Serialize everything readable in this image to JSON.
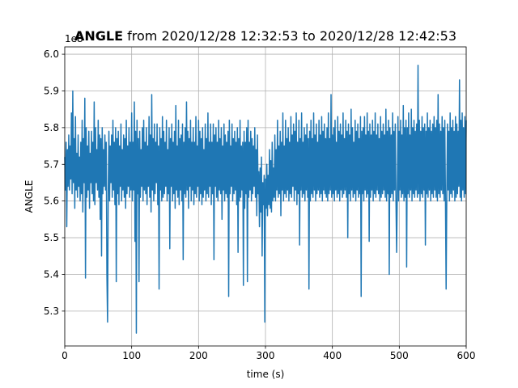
{
  "chart_data": {
    "type": "line",
    "title_bold": "ANGLE",
    "title_rest": " from 2020/12/28 12:32:53 to 2020/12/28 12:42:53",
    "xlabel": "time (s)",
    "ylabel": "ANGLE",
    "offset_label": "1e8",
    "xlim": [
      0,
      600
    ],
    "ylim": [
      5.205,
      6.02
    ],
    "xticks": [
      0,
      100,
      200,
      300,
      400,
      500,
      600
    ],
    "xtick_labels": [
      "0",
      "100",
      "200",
      "300",
      "400",
      "500",
      "600"
    ],
    "yticks": [
      5.3,
      5.4,
      5.5,
      5.6,
      5.7,
      5.8,
      5.9,
      6.0
    ],
    "ytick_labels": [
      "5.3",
      "5.4",
      "5.5",
      "5.6",
      "5.7",
      "5.8",
      "5.9",
      "6.0"
    ],
    "grid": true,
    "series": [
      {
        "color": "#1f77b4",
        "x": [
          0,
          1,
          2,
          3,
          4,
          5,
          6,
          7,
          8,
          9,
          10,
          11,
          12,
          13,
          14,
          15,
          16,
          17,
          18,
          19,
          20,
          21,
          22,
          23,
          24,
          25,
          26,
          27,
          28,
          29,
          30,
          31,
          32,
          33,
          34,
          35,
          36,
          37,
          38,
          39,
          40,
          41,
          42,
          43,
          44,
          45,
          46,
          47,
          48,
          49,
          50,
          51,
          52,
          53,
          54,
          55,
          56,
          57,
          58,
          59,
          60,
          61,
          62,
          63,
          64,
          65,
          66,
          67,
          68,
          69,
          70,
          71,
          72,
          73,
          74,
          75,
          76,
          77,
          78,
          79,
          80,
          81,
          82,
          83,
          84,
          85,
          86,
          87,
          88,
          89,
          90,
          91,
          92,
          93,
          94,
          95,
          96,
          97,
          98,
          99,
          100,
          101,
          102,
          103,
          104,
          105,
          106,
          107,
          108,
          109,
          110,
          111,
          112,
          113,
          114,
          115,
          116,
          117,
          118,
          119,
          120,
          121,
          122,
          123,
          124,
          125,
          126,
          127,
          128,
          129,
          130,
          131,
          132,
          133,
          134,
          135,
          136,
          137,
          138,
          139,
          140,
          141,
          142,
          143,
          144,
          145,
          146,
          147,
          148,
          149,
          150,
          151,
          152,
          153,
          154,
          155,
          156,
          157,
          158,
          159,
          160,
          161,
          162,
          163,
          164,
          165,
          166,
          167,
          168,
          169,
          170,
          171,
          172,
          173,
          174,
          175,
          176,
          177,
          178,
          179,
          180,
          181,
          182,
          183,
          184,
          185,
          186,
          187,
          188,
          189,
          190,
          191,
          192,
          193,
          194,
          195,
          196,
          197,
          198,
          199,
          200,
          201,
          202,
          203,
          204,
          205,
          206,
          207,
          208,
          209,
          210,
          211,
          212,
          213,
          214,
          215,
          216,
          217,
          218,
          219,
          220,
          221,
          222,
          223,
          224,
          225,
          226,
          227,
          228,
          229,
          230,
          231,
          232,
          233,
          234,
          235,
          236,
          237,
          238,
          239,
          240,
          241,
          242,
          243,
          244,
          245,
          246,
          247,
          248,
          249,
          250,
          251,
          252,
          253,
          254,
          255,
          256,
          257,
          258,
          259,
          260,
          261,
          262,
          263,
          264,
          265,
          266,
          267,
          268,
          269,
          270,
          271,
          272,
          273,
          274,
          275,
          276,
          277,
          278,
          279,
          280,
          281,
          282,
          283,
          284,
          285,
          286,
          287,
          288,
          289,
          290,
          291,
          292,
          293,
          294,
          295,
          296,
          297,
          298,
          299,
          300,
          301,
          302,
          303,
          304,
          305,
          306,
          307,
          308,
          309,
          310,
          311,
          312,
          313,
          314,
          315,
          316,
          317,
          318,
          319,
          320,
          321,
          322,
          323,
          324,
          325,
          326,
          327,
          328,
          329,
          330,
          331,
          332,
          333,
          334,
          335,
          336,
          337,
          338,
          339,
          340,
          341,
          342,
          343,
          344,
          345,
          346,
          347,
          348,
          349,
          350,
          351,
          352,
          353,
          354,
          355,
          356,
          357,
          358,
          359,
          360,
          361,
          362,
          363,
          364,
          365,
          366,
          367,
          368,
          369,
          370,
          371,
          372,
          373,
          374,
          375,
          376,
          377,
          378,
          379,
          380,
          381,
          382,
          383,
          384,
          385,
          386,
          387,
          388,
          389,
          390,
          391,
          392,
          393,
          394,
          395,
          396,
          397,
          398,
          399,
          400,
          401,
          402,
          403,
          404,
          405,
          406,
          407,
          408,
          409,
          410,
          411,
          412,
          413,
          414,
          415,
          416,
          417,
          418,
          419,
          420,
          421,
          422,
          423,
          424,
          425,
          426,
          427,
          428,
          429,
          430,
          431,
          432,
          433,
          434,
          435,
          436,
          437,
          438,
          439,
          440,
          441,
          442,
          443,
          444,
          445,
          446,
          447,
          448,
          449,
          450,
          451,
          452,
          453,
          454,
          455,
          456,
          457,
          458,
          459,
          460,
          461,
          462,
          463,
          464,
          465,
          466,
          467,
          468,
          469,
          470,
          471,
          472,
          473,
          474,
          475,
          476,
          477,
          478,
          479,
          480,
          481,
          482,
          483,
          484,
          485,
          486,
          487,
          488,
          489,
          490,
          491,
          492,
          493,
          494,
          495,
          496,
          497,
          498,
          499,
          500,
          501,
          502,
          503,
          504,
          505,
          506,
          507,
          508,
          509,
          510,
          511,
          512,
          513,
          514,
          515,
          516,
          517,
          518,
          519,
          520,
          521,
          522,
          523,
          524,
          525,
          526,
          527,
          528,
          529,
          530,
          531,
          532,
          533,
          534,
          535,
          536,
          537,
          538,
          539,
          540,
          541,
          542,
          543,
          544,
          545,
          546,
          547,
          548,
          549,
          550,
          551,
          552,
          553,
          554,
          555,
          556,
          557,
          558,
          559,
          560,
          561,
          562,
          563,
          564,
          565,
          566,
          567,
          568,
          569,
          570,
          571,
          572,
          573,
          574,
          575,
          576,
          577,
          578,
          579,
          580,
          581,
          582,
          583,
          584,
          585,
          586,
          587,
          588,
          589,
          590,
          591,
          592,
          593,
          594,
          595,
          596,
          597,
          598,
          599,
          600
        ],
        "y": [
          5.72,
          5.63,
          5.76,
          5.53,
          5.74,
          5.64,
          5.78,
          5.63,
          5.75,
          5.66,
          5.84,
          5.62,
          5.9,
          5.65,
          5.77,
          5.58,
          5.83,
          5.63,
          5.73,
          5.61,
          5.78,
          5.64,
          5.72,
          5.6,
          5.76,
          5.62,
          5.82,
          5.57,
          5.77,
          5.65,
          5.88,
          5.39,
          5.8,
          5.61,
          5.75,
          5.63,
          5.79,
          5.58,
          5.73,
          5.65,
          5.79,
          5.62,
          5.76,
          5.6,
          5.87,
          5.59,
          5.8,
          5.65,
          5.74,
          5.63,
          5.82,
          5.61,
          5.78,
          5.55,
          5.77,
          5.45,
          5.8,
          5.62,
          5.74,
          5.64,
          5.78,
          5.63,
          5.76,
          5.4,
          5.27,
          5.63,
          5.79,
          5.6,
          5.75,
          5.65,
          5.78,
          5.61,
          5.82,
          5.63,
          5.76,
          5.59,
          5.8,
          5.38,
          5.77,
          5.62,
          5.79,
          5.59,
          5.75,
          5.64,
          5.81,
          5.6,
          5.74,
          5.63,
          5.78,
          5.61,
          5.77,
          5.58,
          5.82,
          5.62,
          5.75,
          5.64,
          5.8,
          5.61,
          5.76,
          5.63,
          5.84,
          5.6,
          5.76,
          5.63,
          5.87,
          5.49,
          5.79,
          5.24,
          5.82,
          5.62,
          5.77,
          5.38,
          5.79,
          5.61,
          5.74,
          5.64,
          5.8,
          5.6,
          5.82,
          5.63,
          5.76,
          5.62,
          5.8,
          5.59,
          5.75,
          5.64,
          5.83,
          5.61,
          5.78,
          5.57,
          5.89,
          5.63,
          5.77,
          5.6,
          5.81,
          5.62,
          5.76,
          5.65,
          5.81,
          5.59,
          5.75,
          5.36,
          5.8,
          5.63,
          5.77,
          5.6,
          5.83,
          5.61,
          5.79,
          5.62,
          5.76,
          5.64,
          5.82,
          5.6,
          5.74,
          5.62,
          5.8,
          5.47,
          5.77,
          5.64,
          5.81,
          5.6,
          5.76,
          5.62,
          5.79,
          5.58,
          5.86,
          5.63,
          5.75,
          5.61,
          5.82,
          5.59,
          5.77,
          5.63,
          5.78,
          5.6,
          5.81,
          5.44,
          5.76,
          5.62,
          5.8,
          5.61,
          5.87,
          5.63,
          5.79,
          5.58,
          5.77,
          5.64,
          5.82,
          5.6,
          5.76,
          5.63,
          5.8,
          5.59,
          5.76,
          5.62,
          5.83,
          5.61,
          5.75,
          5.64,
          5.82,
          5.6,
          5.79,
          5.62,
          5.77,
          5.59,
          5.8,
          5.61,
          5.74,
          5.63,
          5.81,
          5.6,
          5.77,
          5.62,
          5.84,
          5.61,
          5.76,
          5.64,
          5.81,
          5.59,
          5.76,
          5.62,
          5.81,
          5.44,
          5.78,
          5.64,
          5.8,
          5.61,
          5.76,
          5.6,
          5.82,
          5.63,
          5.77,
          5.62,
          5.8,
          5.55,
          5.75,
          5.63,
          5.81,
          5.6,
          5.78,
          5.62,
          5.76,
          5.61,
          5.79,
          5.34,
          5.82,
          5.62,
          5.75,
          5.64,
          5.81,
          5.6,
          5.77,
          5.62,
          5.79,
          5.63,
          5.76,
          5.59,
          5.8,
          5.46,
          5.77,
          5.6,
          5.82,
          5.61,
          5.75,
          5.63,
          5.76,
          5.37,
          5.79,
          5.58,
          5.76,
          5.62,
          5.8,
          5.38,
          5.82,
          5.61,
          5.76,
          5.63,
          5.79,
          5.6,
          5.77,
          5.62,
          5.75,
          5.64,
          5.8,
          5.61,
          5.74,
          5.56,
          5.78,
          5.62,
          5.68,
          5.53,
          5.69,
          5.57,
          5.72,
          5.45,
          5.65,
          5.59,
          5.67,
          5.27,
          5.66,
          5.58,
          5.7,
          5.56,
          5.67,
          5.59,
          5.74,
          5.58,
          5.71,
          5.57,
          5.76,
          5.6,
          5.69,
          5.61,
          5.78,
          5.6,
          5.74,
          5.63,
          5.82,
          5.61,
          5.75,
          5.62,
          5.79,
          5.56,
          5.76,
          5.63,
          5.84,
          5.6,
          5.75,
          5.62,
          5.82,
          5.61,
          5.77,
          5.63,
          5.8,
          5.6,
          5.76,
          5.62,
          5.83,
          5.61,
          5.78,
          5.64,
          5.81,
          5.6,
          5.79,
          5.63,
          5.84,
          5.59,
          5.76,
          5.62,
          5.82,
          5.48,
          5.77,
          5.63,
          5.84,
          5.61,
          5.76,
          5.62,
          5.8,
          5.6,
          5.78,
          5.63,
          5.81,
          5.61,
          5.77,
          5.36,
          5.79,
          5.6,
          5.82,
          5.62,
          5.77,
          5.61,
          5.84,
          5.63,
          5.78,
          5.6,
          5.81,
          5.62,
          5.76,
          5.63,
          5.82,
          5.61,
          5.78,
          5.62,
          5.83,
          5.6,
          5.79,
          5.63,
          5.81,
          5.62,
          5.77,
          5.61,
          5.8,
          5.6,
          5.84,
          5.62,
          5.77,
          5.63,
          5.89,
          5.61,
          5.78,
          5.62,
          5.8,
          5.6,
          5.82,
          5.63,
          5.76,
          5.61,
          5.83,
          5.62,
          5.79,
          5.6,
          5.81,
          5.63,
          5.78,
          5.61,
          5.84,
          5.62,
          5.77,
          5.63,
          5.82,
          5.61,
          5.79,
          5.5,
          5.81,
          5.62,
          5.78,
          5.6,
          5.85,
          5.63,
          5.8,
          5.61,
          5.76,
          5.62,
          5.82,
          5.6,
          5.79,
          5.63,
          5.81,
          5.61,
          5.77,
          5.62,
          5.83,
          5.34,
          5.79,
          5.62,
          5.8,
          5.6,
          5.83,
          5.63,
          5.78,
          5.61,
          5.84,
          5.62,
          5.79,
          5.49,
          5.81,
          5.61,
          5.78,
          5.63,
          5.82,
          5.6,
          5.79,
          5.62,
          5.84,
          5.61,
          5.78,
          5.63,
          5.81,
          5.62,
          5.77,
          5.6,
          5.83,
          5.61,
          5.79,
          5.62,
          5.81,
          5.63,
          5.78,
          5.61,
          5.85,
          5.6,
          5.79,
          5.62,
          5.82,
          5.4,
          5.8,
          5.61,
          5.78,
          5.62,
          5.84,
          5.6,
          5.79,
          5.63,
          5.81,
          5.61,
          5.46,
          5.62,
          5.83,
          5.6,
          5.79,
          5.63,
          5.82,
          5.61,
          5.78,
          5.62,
          5.86,
          5.6,
          5.8,
          5.61,
          5.82,
          5.42,
          5.8,
          5.62,
          5.84,
          5.61,
          5.78,
          5.63,
          5.85,
          5.6,
          5.8,
          5.62,
          5.82,
          5.61,
          5.79,
          5.63,
          5.81,
          5.61,
          5.97,
          5.62,
          5.82,
          5.6,
          5.79,
          5.62,
          5.83,
          5.61,
          5.8,
          5.63,
          5.81,
          5.48,
          5.79,
          5.62,
          5.84,
          5.61,
          5.8,
          5.63,
          5.82,
          5.6,
          5.79,
          5.62,
          5.81,
          5.61,
          5.83,
          5.63,
          5.8,
          5.61,
          5.82,
          5.6,
          5.89,
          5.62,
          5.81,
          5.61,
          5.79,
          5.63,
          5.83,
          5.62,
          5.8,
          5.6,
          5.82,
          5.61,
          5.36,
          5.62,
          5.81,
          5.63,
          5.79,
          5.6,
          5.84,
          5.62,
          5.8,
          5.61,
          5.82,
          5.63,
          5.79,
          5.6,
          5.83,
          5.61,
          5.81,
          5.62,
          5.79,
          5.64,
          5.93,
          5.61,
          5.82,
          5.6,
          5.84,
          5.63,
          5.8,
          5.61,
          5.83,
          5.62,
          5.82
        ]
      }
    ]
  }
}
